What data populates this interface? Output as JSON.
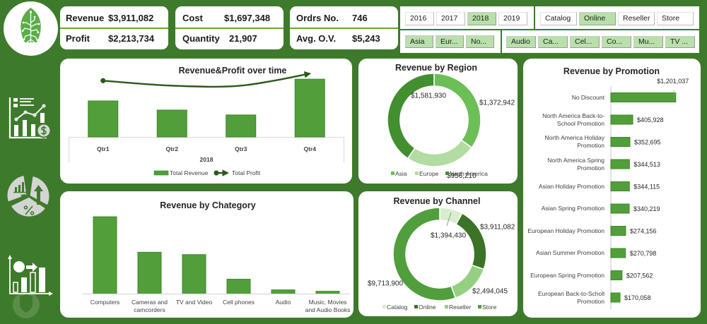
{
  "header": {
    "kpis": [
      {
        "rows": [
          {
            "label": "Revenue",
            "value": "$3,911,082"
          },
          {
            "label": "Profit",
            "value": "$2,213,734"
          }
        ]
      },
      {
        "rows": [
          {
            "label": "Cost",
            "value": "$1,697,348"
          },
          {
            "label": "Quantity",
            "value": "21,907"
          }
        ]
      },
      {
        "rows": [
          {
            "label": "Ordrs No.",
            "value": "746"
          },
          {
            "label": "Avg. O.V.",
            "value": "$5,243"
          }
        ]
      }
    ]
  },
  "slicers": {
    "year": {
      "items": [
        {
          "label": "2016",
          "selected": false
        },
        {
          "label": "2017",
          "selected": false
        },
        {
          "label": "2018",
          "selected": true
        },
        {
          "label": "2019",
          "selected": false
        }
      ]
    },
    "channel": {
      "items": [
        {
          "label": "Catalog",
          "selected": false
        },
        {
          "label": "Online",
          "selected": true
        },
        {
          "label": "Reseller",
          "selected": false
        },
        {
          "label": "Store",
          "selected": false
        }
      ]
    },
    "region": {
      "items": [
        {
          "label": "Asia",
          "selected": true
        },
        {
          "label": "Eur...",
          "selected": true
        },
        {
          "label": "No...",
          "selected": true
        }
      ]
    },
    "category": {
      "items": [
        {
          "label": "Audio",
          "selected": true
        },
        {
          "label": "Ca...",
          "selected": true
        },
        {
          "label": "Cel...",
          "selected": true
        },
        {
          "label": "Co...",
          "selected": true
        },
        {
          "label": "Mu...",
          "selected": true
        },
        {
          "label": "TV ...",
          "selected": true
        }
      ]
    }
  },
  "colors": {
    "background": "#3e7a2b",
    "bar": "#529e3a",
    "bar_border": "#3b8a29",
    "profit_line": "#2b5a1a",
    "slicer_selected": "#b9e0aa",
    "kpi_divider": "#65a830"
  },
  "chart_data": [
    {
      "type": "bar",
      "title": "Revenue&Profit over time",
      "categories": [
        "Qtr1",
        "Qtr2",
        "Qtr3",
        "Qtr4"
      ],
      "group_label": "2018",
      "series": [
        {
          "name": "Total Revenue",
          "type": "bar",
          "values": [
            987000,
            737000,
            603000,
            1584000
          ]
        },
        {
          "name": "Total Profit",
          "type": "line",
          "axis": "secondary",
          "values": [
            586000,
            365000,
            366000,
            897000
          ]
        }
      ],
      "xlabel": "2018",
      "ylabel": "",
      "ylim": [
        0,
        1800000
      ],
      "y2lim": [
        -1900000,
        1000000
      ],
      "grid": false,
      "legend": "bottom"
    },
    {
      "type": "bar",
      "title": "Revenue by Chategory",
      "categories": [
        "Computers",
        "Cameras and camcorders",
        "TV and Video",
        "Cell phones",
        "Audio",
        "Music, Movies and Audio Books"
      ],
      "values": [
        1690000,
        910000,
        858000,
        318000,
        83000,
        52000
      ],
      "xlabel": "",
      "ylabel": "",
      "ylim": [
        0,
        1800000
      ],
      "grid": false,
      "legend": "none"
    },
    {
      "type": "pie",
      "donut": true,
      "title": "Revenue by Region",
      "categories": [
        "Asia",
        "Europe",
        "North America"
      ],
      "values": [
        1372942,
        956210,
        1581930
      ],
      "data_labels": [
        "$1,372,942",
        "$956,210",
        "$1,581,930"
      ],
      "colors": [
        "#6cbf56",
        "#b2dca1",
        "#428f30"
      ],
      "legend": "bottom"
    },
    {
      "type": "pie",
      "donut": true,
      "title": "Revenue by Channel",
      "categories": [
        "Catalog",
        "Online",
        "Reseller",
        "Store"
      ],
      "values": [
        1394430,
        3911082,
        2494045,
        9713900
      ],
      "data_labels": [
        "$1,394,430",
        "$3,911,082",
        "$2,494,045",
        "$9,713,900"
      ],
      "colors": [
        "#d6eecd",
        "#3b7327",
        "#95d082",
        "#519e3c"
      ],
      "legend": "bottom"
    },
    {
      "type": "bar",
      "orientation": "horizontal",
      "title": "Revenue by Promotion",
      "categories": [
        "No Discount",
        "North America Back-to-School Promotion",
        "North America Holiday Promotion",
        "North America Spring Promotion",
        "Asian Holiday Promotion",
        "Asian Spring Promotion",
        "European Holiday Promotion",
        "Asian Summer Promotion",
        "European Spring Promotion",
        "European Back-to-Scholl Promotion"
      ],
      "values": [
        1201037,
        405928,
        352695,
        344513,
        344115,
        340219,
        274156,
        270798,
        207562,
        170058
      ],
      "data_labels": [
        "$1,201,037",
        "$405,928",
        "$352,695",
        "$344,513",
        "$344,115",
        "$340,219",
        "$274,156",
        "$270,798",
        "$207,562",
        "$170,058"
      ],
      "xlim": [
        0,
        1400000
      ],
      "grid": false,
      "legend": "none"
    }
  ]
}
